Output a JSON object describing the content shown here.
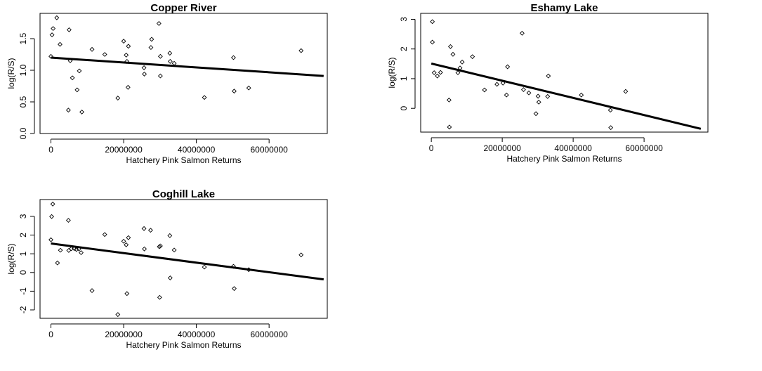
{
  "chart_data": [
    {
      "id": "copper",
      "type": "scatter",
      "title": "Copper River",
      "xlabel": "Hatchery Pink Salmon Returns",
      "ylabel": "log(R/S)",
      "xlim": [
        -3000000,
        76000000
      ],
      "ylim": [
        0,
        1.9
      ],
      "xticks": [
        0,
        20000000,
        40000000,
        60000000
      ],
      "xtick_labels": [
        "0",
        "20000000",
        "40000000",
        "60000000"
      ],
      "yticks": [
        0,
        0.5,
        1.0,
        1.5
      ],
      "ytick_labels": [
        "0.0",
        "0.5",
        "1.0",
        "1.5"
      ],
      "points": [
        [
          0,
          1.22
        ],
        [
          300000,
          1.56
        ],
        [
          600000,
          1.66
        ],
        [
          1600000,
          1.83
        ],
        [
          2500000,
          1.41
        ],
        [
          4800000,
          0.37
        ],
        [
          5000000,
          1.64
        ],
        [
          5300000,
          1.15
        ],
        [
          5900000,
          0.88
        ],
        [
          7200000,
          0.69
        ],
        [
          7800000,
          0.99
        ],
        [
          8500000,
          0.34
        ],
        [
          11300000,
          1.33
        ],
        [
          14800000,
          1.25
        ],
        [
          18400000,
          0.56
        ],
        [
          20000000,
          1.46
        ],
        [
          20700000,
          1.24
        ],
        [
          20900000,
          1.14
        ],
        [
          21300000,
          1.38
        ],
        [
          21200000,
          0.73
        ],
        [
          25600000,
          1.04
        ],
        [
          25700000,
          0.94
        ],
        [
          27500000,
          1.36
        ],
        [
          27700000,
          1.49
        ],
        [
          29700000,
          1.74
        ],
        [
          30100000,
          1.22
        ],
        [
          30100000,
          0.91
        ],
        [
          32700000,
          1.27
        ],
        [
          32800000,
          1.14
        ],
        [
          33900000,
          1.11
        ],
        [
          42200000,
          0.57
        ],
        [
          50200000,
          1.2
        ],
        [
          50400000,
          0.67
        ],
        [
          54400000,
          0.72
        ],
        [
          68800000,
          1.31
        ]
      ],
      "fit": {
        "x": [
          0,
          75000000
        ],
        "y": [
          1.2,
          0.91
        ]
      }
    },
    {
      "id": "eshamy",
      "type": "scatter",
      "title": "Eshamy Lake",
      "xlabel": "Hatchery Pink Salmon Returns",
      "ylabel": "log(R/S)",
      "xlim": [
        -3000000,
        78000000
      ],
      "ylim": [
        -0.8,
        3.2
      ],
      "xticks": [
        0,
        20000000,
        40000000,
        60000000
      ],
      "xtick_labels": [
        "0",
        "20000000",
        "40000000",
        "60000000"
      ],
      "yticks": [
        0,
        1,
        2,
        3
      ],
      "ytick_labels": [
        "0",
        "1",
        "2",
        "3"
      ],
      "points": [
        [
          300000,
          2.92
        ],
        [
          300000,
          2.23
        ],
        [
          800000,
          1.2
        ],
        [
          1700000,
          1.09
        ],
        [
          2600000,
          1.21
        ],
        [
          5000000,
          0.28
        ],
        [
          5100000,
          -0.63
        ],
        [
          5400000,
          2.08
        ],
        [
          6100000,
          1.82
        ],
        [
          7500000,
          1.2
        ],
        [
          8100000,
          1.36
        ],
        [
          8700000,
          1.56
        ],
        [
          11600000,
          1.74
        ],
        [
          15000000,
          0.62
        ],
        [
          18500000,
          0.81
        ],
        [
          20200000,
          0.85
        ],
        [
          21200000,
          0.45
        ],
        [
          21500000,
          1.4
        ],
        [
          25600000,
          2.53
        ],
        [
          26000000,
          0.63
        ],
        [
          27500000,
          0.52
        ],
        [
          29500000,
          -0.18
        ],
        [
          30100000,
          0.41
        ],
        [
          30300000,
          0.21
        ],
        [
          32800000,
          0.4
        ],
        [
          33000000,
          1.09
        ],
        [
          42300000,
          0.45
        ],
        [
          50500000,
          -0.06
        ],
        [
          50600000,
          -0.65
        ],
        [
          54800000,
          0.57
        ]
      ],
      "fit": {
        "x": [
          0,
          76000000
        ],
        "y": [
          1.51,
          -0.69
        ]
      }
    },
    {
      "id": "coghill",
      "type": "scatter",
      "title": "Coghill Lake",
      "xlabel": "Hatchery Pink Salmon Returns",
      "ylabel": "log(R/S)",
      "xlim": [
        -3000000,
        76000000
      ],
      "ylim": [
        -2.45,
        3.9
      ],
      "xticks": [
        0,
        20000000,
        40000000,
        60000000
      ],
      "xtick_labels": [
        "0",
        "20000000",
        "40000000",
        "60000000"
      ],
      "yticks": [
        -2,
        -1,
        0,
        1,
        2,
        3
      ],
      "ytick_labels": [
        "-2",
        "-1",
        "0",
        "1",
        "2",
        "3"
      ],
      "points": [
        [
          0,
          1.75
        ],
        [
          200000,
          2.99
        ],
        [
          500000,
          3.66
        ],
        [
          1800000,
          0.51
        ],
        [
          2600000,
          1.19
        ],
        [
          4800000,
          2.79
        ],
        [
          4900000,
          1.18
        ],
        [
          5600000,
          1.27
        ],
        [
          6400000,
          1.28
        ],
        [
          7000000,
          1.23
        ],
        [
          7700000,
          1.26
        ],
        [
          8300000,
          1.06
        ],
        [
          11300000,
          -0.97
        ],
        [
          14800000,
          2.03
        ],
        [
          18400000,
          -2.25
        ],
        [
          20000000,
          1.67
        ],
        [
          20700000,
          1.48
        ],
        [
          20900000,
          -1.13
        ],
        [
          21300000,
          1.86
        ],
        [
          25600000,
          2.35
        ],
        [
          25700000,
          1.26
        ],
        [
          27400000,
          2.26
        ],
        [
          29800000,
          1.38
        ],
        [
          29900000,
          -1.33
        ],
        [
          30100000,
          1.42
        ],
        [
          32700000,
          1.97
        ],
        [
          32800000,
          -0.29
        ],
        [
          33900000,
          1.2
        ],
        [
          42200000,
          0.29
        ],
        [
          50200000,
          0.33
        ],
        [
          50400000,
          -0.86
        ],
        [
          54400000,
          0.15
        ],
        [
          68800000,
          0.94
        ]
      ],
      "fit": {
        "x": [
          0,
          75000000
        ],
        "y": [
          1.55,
          -0.37
        ]
      }
    }
  ]
}
